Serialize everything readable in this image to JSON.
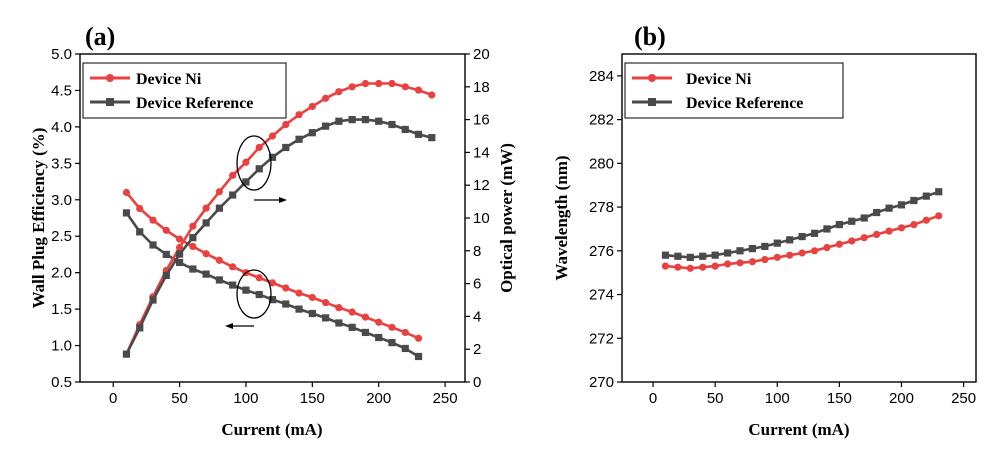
{
  "chart_data": [
    {
      "panel": "(a)",
      "type": "line",
      "xlabel": "Current (mA)",
      "ylabel": "Wall Plug Efficiency (%)",
      "y2label": "Optical power (mW)",
      "xlim": [
        -25,
        265
      ],
      "ylim": [
        0.5,
        5.0
      ],
      "y2lim": [
        0,
        20
      ],
      "xticks": [
        0,
        50,
        100,
        150,
        200,
        250
      ],
      "yticks": [
        0.5,
        1.0,
        1.5,
        2.0,
        2.5,
        3.0,
        3.5,
        4.0,
        4.5,
        5.0
      ],
      "y2ticks": [
        0,
        2,
        4,
        6,
        8,
        10,
        12,
        14,
        16,
        18,
        20
      ],
      "legend_position": "top-left",
      "series": [
        {
          "name": "Device Ni",
          "color": "#e8413f",
          "marker": "circle",
          "axis": "left",
          "x": [
            10,
            20,
            30,
            40,
            50,
            60,
            70,
            80,
            90,
            100,
            110,
            120,
            130,
            140,
            150,
            160,
            170,
            180,
            190,
            200,
            210,
            220,
            230
          ],
          "y": [
            3.1,
            2.88,
            2.72,
            2.58,
            2.46,
            2.36,
            2.26,
            2.17,
            2.08,
            2.0,
            1.93,
            1.86,
            1.79,
            1.72,
            1.66,
            1.59,
            1.52,
            1.46,
            1.39,
            1.32,
            1.25,
            1.18,
            1.1
          ]
        },
        {
          "name": "Device Reference",
          "color": "#4a4a4a",
          "marker": "square",
          "axis": "left",
          "x": [
            10,
            20,
            30,
            40,
            50,
            60,
            70,
            80,
            90,
            100,
            110,
            120,
            130,
            140,
            150,
            160,
            170,
            180,
            190,
            200,
            210,
            220,
            230
          ],
          "y": [
            2.82,
            2.56,
            2.38,
            2.25,
            2.14,
            2.05,
            1.98,
            1.9,
            1.83,
            1.76,
            1.7,
            1.63,
            1.57,
            1.5,
            1.44,
            1.38,
            1.31,
            1.25,
            1.18,
            1.11,
            1.04,
            0.96,
            0.85
          ]
        },
        {
          "name": "Device Ni",
          "color": "#e8413f",
          "marker": "circle",
          "axis": "right",
          "x": [
            10,
            20,
            30,
            40,
            50,
            60,
            70,
            80,
            90,
            100,
            110,
            120,
            130,
            140,
            150,
            160,
            170,
            180,
            190,
            200,
            210,
            220,
            230,
            240
          ],
          "y": [
            1.7,
            3.5,
            5.2,
            6.8,
            8.2,
            9.5,
            10.6,
            11.6,
            12.6,
            13.4,
            14.3,
            15.0,
            15.7,
            16.3,
            16.8,
            17.3,
            17.7,
            18.0,
            18.2,
            18.2,
            18.2,
            18.0,
            17.8,
            17.5
          ]
        },
        {
          "name": "Device Reference",
          "color": "#4a4a4a",
          "marker": "square",
          "axis": "right",
          "x": [
            10,
            20,
            30,
            40,
            50,
            60,
            70,
            80,
            90,
            100,
            110,
            120,
            130,
            140,
            150,
            160,
            170,
            180,
            190,
            200,
            210,
            220,
            230,
            240
          ],
          "y": [
            1.7,
            3.3,
            5.0,
            6.5,
            7.8,
            8.8,
            9.7,
            10.6,
            11.4,
            12.2,
            13.0,
            13.7,
            14.3,
            14.8,
            15.2,
            15.6,
            15.9,
            16.0,
            16.0,
            15.9,
            15.7,
            15.4,
            15.1,
            14.9
          ]
        }
      ]
    },
    {
      "panel": "(b)",
      "type": "line",
      "xlabel": "Current (mA)",
      "ylabel": "Wavelength (nm)",
      "xlim": [
        -25,
        260
      ],
      "ylim": [
        270,
        285
      ],
      "xticks": [
        0,
        50,
        100,
        150,
        200,
        250
      ],
      "yticks": [
        270,
        272,
        274,
        276,
        278,
        280,
        282,
        284
      ],
      "legend_position": "top-left",
      "series": [
        {
          "name": "Device Ni",
          "color": "#e8413f",
          "marker": "circle",
          "x": [
            10,
            20,
            30,
            40,
            50,
            60,
            70,
            80,
            90,
            100,
            110,
            120,
            130,
            140,
            150,
            160,
            170,
            180,
            190,
            200,
            210,
            220,
            230
          ],
          "y": [
            275.3,
            275.25,
            275.2,
            275.25,
            275.3,
            275.4,
            275.45,
            275.5,
            275.6,
            275.7,
            275.8,
            275.9,
            276.0,
            276.15,
            276.3,
            276.45,
            276.6,
            276.75,
            276.9,
            277.05,
            277.2,
            277.4,
            277.6
          ]
        },
        {
          "name": "Device Reference",
          "color": "#4a4a4a",
          "marker": "square",
          "x": [
            10,
            20,
            30,
            40,
            50,
            60,
            70,
            80,
            90,
            100,
            110,
            120,
            130,
            140,
            150,
            160,
            170,
            180,
            190,
            200,
            210,
            220,
            230
          ],
          "y": [
            275.8,
            275.75,
            275.7,
            275.75,
            275.8,
            275.9,
            276.0,
            276.1,
            276.2,
            276.35,
            276.5,
            276.65,
            276.8,
            277.0,
            277.2,
            277.35,
            277.5,
            277.75,
            277.95,
            278.1,
            278.3,
            278.5,
            278.7
          ]
        }
      ]
    }
  ]
}
